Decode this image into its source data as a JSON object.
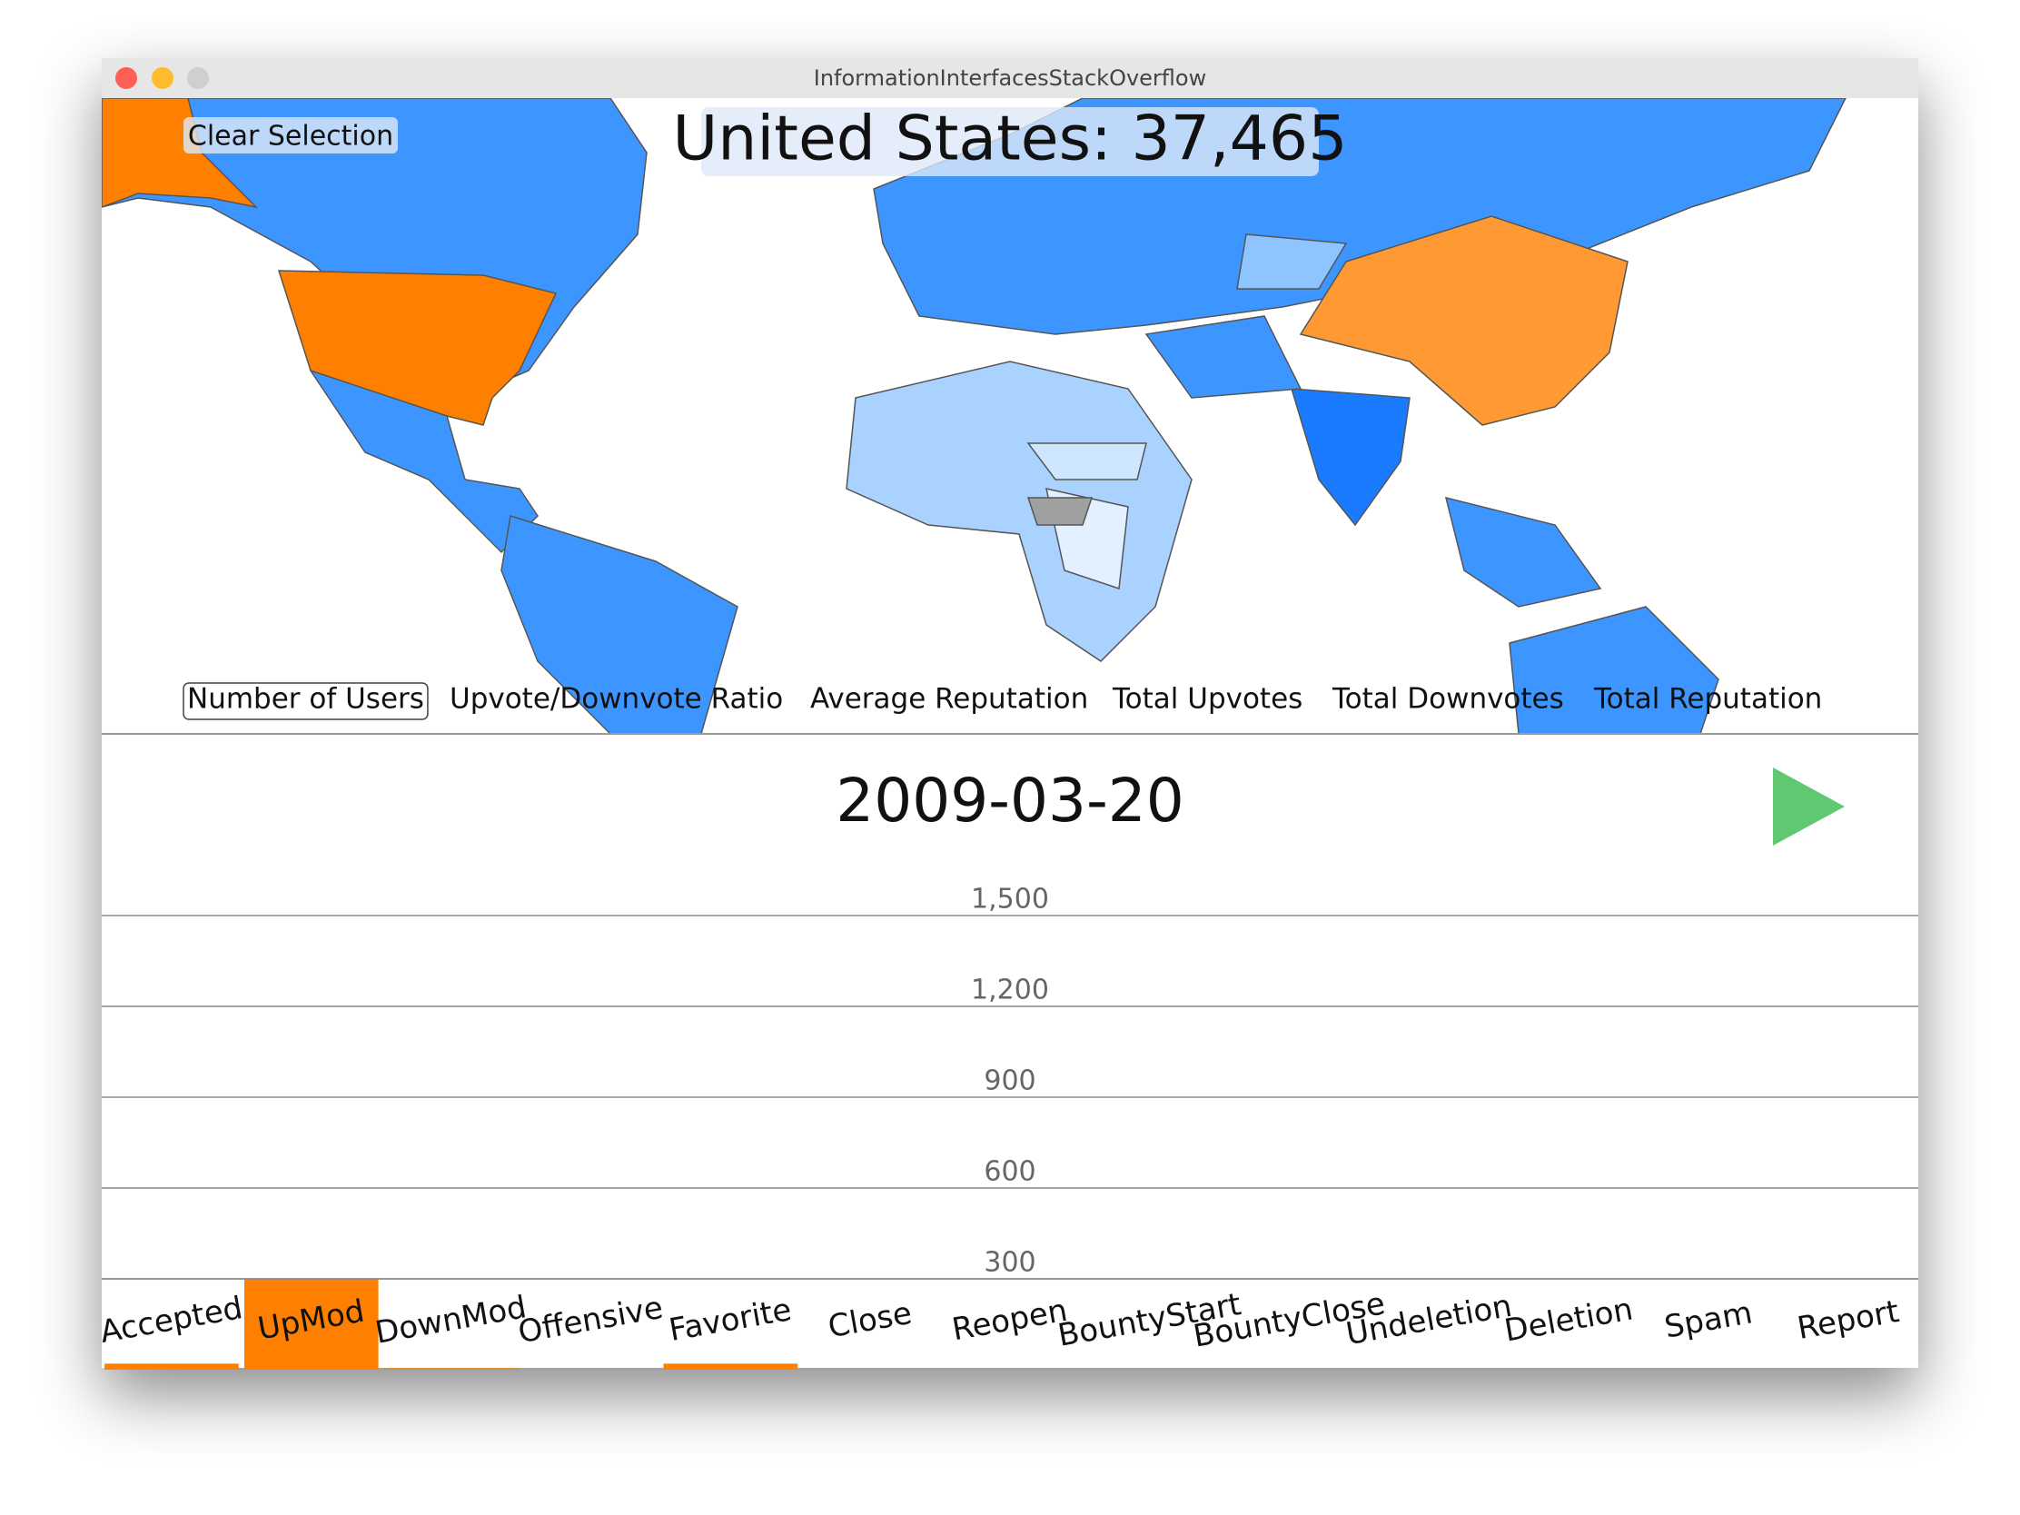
{
  "window": {
    "title": "InformationInterfacesStackOverflow"
  },
  "map": {
    "clear_button": "Clear Selection",
    "selection_label": "United States: 37,465",
    "metrics": [
      "Number of Users",
      "Upvote/Downvote Ratio",
      "Average Reputation",
      "Total Upvotes",
      "Total Downvotes",
      "Total Reputation"
    ]
  },
  "timeline": {
    "date": "2009-03-20"
  },
  "chart_data": {
    "type": "bar",
    "color": "#ff8000",
    "categories": [
      "Accepted",
      "UpMod",
      "DownMod",
      "Offensive",
      "Favorite",
      "Close",
      "Reopen",
      "BountyStart",
      "BountyClose",
      "Undeletion",
      "Deletion",
      "Spam",
      "Report"
    ],
    "values": [
      20,
      300,
      5,
      0,
      20,
      0,
      0,
      0,
      0,
      0,
      0,
      0,
      0
    ],
    "ylim": [
      0,
      2100
    ],
    "yticks": [
      {
        "value": 1500,
        "label": "1,500"
      },
      {
        "value": 1200,
        "label": "1,200"
      },
      900,
      600,
      300
    ],
    "grid": true
  }
}
